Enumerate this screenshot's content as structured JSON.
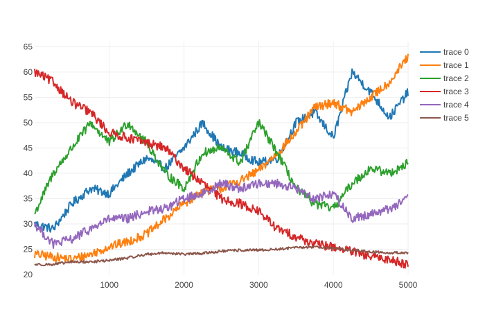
{
  "chart_data": {
    "type": "line",
    "title": "",
    "xlabel": "",
    "ylabel": "",
    "xlim": [
      1,
      5000
    ],
    "ylim": [
      20,
      66
    ],
    "x_ticks": [
      1000,
      2000,
      3000,
      4000,
      5000
    ],
    "y_ticks": [
      20,
      25,
      30,
      35,
      40,
      45,
      50,
      55,
      60,
      65
    ],
    "grid": true,
    "legend_position": "top-right",
    "x": [
      1,
      250,
      500,
      750,
      1000,
      1250,
      1500,
      1750,
      2000,
      2250,
      2500,
      2750,
      3000,
      3250,
      3500,
      3750,
      4000,
      4250,
      4500,
      4750,
      5000
    ],
    "series": [
      {
        "name": "trace 0",
        "color": "#1f77b4",
        "values": [
          30,
          29,
          34,
          37,
          36,
          40,
          43,
          41,
          45,
          50,
          45,
          44,
          42,
          43,
          50,
          52,
          47,
          60,
          56,
          51,
          56
        ]
      },
      {
        "name": "trace 1",
        "color": "#ff7f0e",
        "values": [
          24,
          23.5,
          23,
          24,
          25.5,
          26.5,
          28,
          31,
          34,
          36.5,
          37,
          38.5,
          40.5,
          44,
          48,
          53,
          54,
          52,
          55,
          58,
          63
        ]
      },
      {
        "name": "trace 2",
        "color": "#2ca02c",
        "values": [
          32,
          40,
          45,
          50,
          46,
          50,
          46,
          40,
          37,
          44,
          45,
          42,
          50,
          44,
          37,
          34,
          33,
          38,
          41,
          40,
          42
        ]
      },
      {
        "name": "trace 3",
        "color": "#d62728",
        "values": [
          60,
          58,
          54,
          52,
          48,
          47,
          46,
          45,
          41,
          38,
          35,
          34,
          32.5,
          29,
          27.5,
          26,
          25.5,
          24.5,
          23.5,
          23,
          22
        ]
      },
      {
        "name": "trace 4",
        "color": "#9467bd",
        "values": [
          30,
          26,
          27,
          29,
          31,
          31,
          32.5,
          33,
          35,
          36,
          38,
          37,
          38,
          38,
          37,
          35,
          36,
          31,
          32,
          33,
          35
        ]
      },
      {
        "name": "trace 5",
        "color": "#8c564b",
        "values": [
          22,
          22,
          22.5,
          22.5,
          22.8,
          23.3,
          24,
          24.3,
          24,
          24.2,
          24.6,
          24.8,
          24.8,
          25,
          25.3,
          25.5,
          25.2,
          24.8,
          24.5,
          24.3,
          24.3
        ]
      }
    ]
  }
}
